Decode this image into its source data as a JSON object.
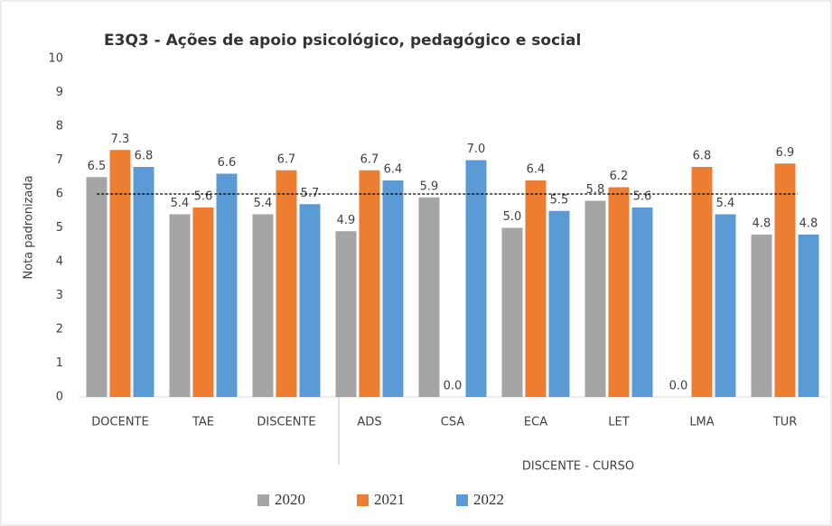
{
  "chart_data": {
    "type": "bar",
    "title": "E3Q3 - Ações de apoio psicológico, pedagógico e social",
    "y_label": "Nota padronizada",
    "group_label": "DISCENTE - CURSO",
    "categories": [
      "DOCENTE",
      "TAE",
      "DISCENTE",
      "ADS",
      "CSA",
      "ECA",
      "LET",
      "LMA",
      "TUR"
    ],
    "series": [
      {
        "name": "2020",
        "color": "#a5a5a5",
        "values": [
          6.5,
          5.4,
          5.4,
          4.9,
          5.9,
          5.0,
          5.8,
          0.0,
          4.8
        ],
        "value_labels": [
          "6.5",
          "5.4",
          "5.4",
          "4.9",
          "5.9",
          "5.0",
          "5.8",
          "0.0",
          "4.8"
        ]
      },
      {
        "name": "2021",
        "color": "#ed7d31",
        "values": [
          7.3,
          5.6,
          6.7,
          6.7,
          0.0,
          6.4,
          6.2,
          6.8,
          6.9
        ],
        "value_labels": [
          "7.3",
          "5.6",
          "6.7",
          "6.7",
          "0.0",
          "6.4",
          "6.2",
          "6.8",
          "6.9"
        ]
      },
      {
        "name": "2022",
        "color": "#5b9bd5",
        "values": [
          6.8,
          6.6,
          5.7,
          6.4,
          7.0,
          5.5,
          5.6,
          5.4,
          4.8
        ],
        "value_labels": [
          "6.8",
          "6.6",
          "5.7",
          "6.4",
          "7.0",
          "5.5",
          "5.6",
          "5.4",
          "4.8"
        ]
      }
    ],
    "reference_line": 6,
    "ylim": [
      0,
      10
    ],
    "yticks": [
      0,
      1,
      2,
      3,
      4,
      5,
      6,
      7,
      8,
      9,
      10
    ],
    "grid": false,
    "legend": "bottom"
  }
}
